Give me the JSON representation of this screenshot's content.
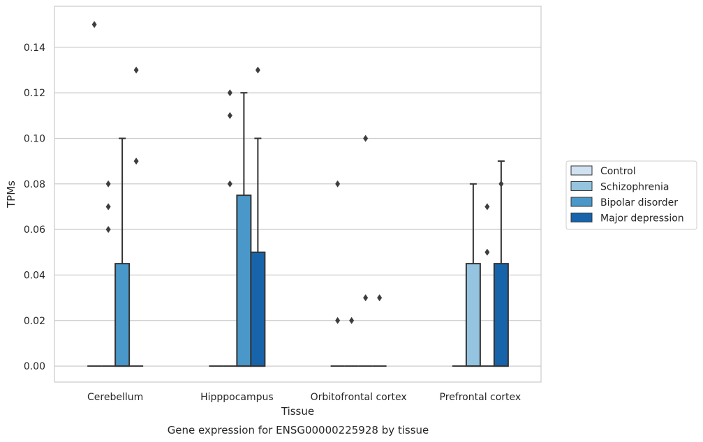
{
  "chart_data": {
    "type": "boxplot",
    "caption": "Gene expression for ENSG00000225928 by tissue",
    "xlabel": "Tissue",
    "ylabel": "TPMs",
    "ylim": [
      -0.007,
      0.158
    ],
    "yticks": [
      0.0,
      0.02,
      0.04,
      0.06,
      0.08,
      0.1,
      0.12,
      0.14
    ],
    "ytick_labels": [
      "0.00",
      "0.02",
      "0.04",
      "0.06",
      "0.08",
      "0.10",
      "0.12",
      "0.14"
    ],
    "grid": "y",
    "legend_position": "right",
    "categories": [
      "Cerebellum",
      "Hipppocampus",
      "Orbitofrontal cortex",
      "Prefrontal cortex"
    ],
    "series": [
      {
        "name": "Control",
        "color": "#d0e1f2",
        "boxes": [
          {
            "q1": 0,
            "median": 0,
            "q3": 0,
            "whisker_low": 0,
            "whisker_high": 0,
            "outliers": [
              0.15
            ]
          },
          {
            "q1": 0,
            "median": 0,
            "q3": 0,
            "whisker_low": 0,
            "whisker_high": 0,
            "outliers": []
          },
          {
            "q1": 0,
            "median": 0,
            "q3": 0,
            "whisker_low": 0,
            "whisker_high": 0,
            "outliers": [
              0.02,
              0.08
            ]
          },
          {
            "q1": 0,
            "median": 0,
            "q3": 0,
            "whisker_low": 0,
            "whisker_high": 0,
            "outliers": []
          }
        ]
      },
      {
        "name": "Schizophrenia",
        "color": "#94c4df",
        "boxes": [
          {
            "q1": 0,
            "median": 0,
            "q3": 0,
            "whisker_low": 0,
            "whisker_high": 0,
            "outliers": [
              0.06,
              0.07,
              0.08
            ]
          },
          {
            "q1": 0,
            "median": 0,
            "q3": 0,
            "whisker_low": 0,
            "whisker_high": 0,
            "outliers": [
              0.08,
              0.11,
              0.12
            ]
          },
          {
            "q1": 0,
            "median": 0,
            "q3": 0,
            "whisker_low": 0,
            "whisker_high": 0,
            "outliers": [
              0.02
            ]
          },
          {
            "q1": 0,
            "median": 0,
            "q3": 0.045,
            "whisker_low": 0,
            "whisker_high": 0.08,
            "outliers": []
          }
        ]
      },
      {
        "name": "Bipolar disorder",
        "color": "#4a98c9",
        "boxes": [
          {
            "q1": 0,
            "median": 0,
            "q3": 0.045,
            "whisker_low": 0,
            "whisker_high": 0.1,
            "outliers": []
          },
          {
            "q1": 0,
            "median": 0,
            "q3": 0.075,
            "whisker_low": 0,
            "whisker_high": 0.12,
            "outliers": []
          },
          {
            "q1": 0,
            "median": 0,
            "q3": 0,
            "whisker_low": 0,
            "whisker_high": 0,
            "outliers": [
              0.03,
              0.1
            ]
          },
          {
            "q1": 0,
            "median": 0,
            "q3": 0,
            "whisker_low": 0,
            "whisker_high": 0,
            "outliers": [
              0.05,
              0.07
            ]
          }
        ]
      },
      {
        "name": "Major depression",
        "color": "#1764ab",
        "boxes": [
          {
            "q1": 0,
            "median": 0,
            "q3": 0,
            "whisker_low": 0,
            "whisker_high": 0,
            "outliers": [
              0.09,
              0.13
            ]
          },
          {
            "q1": 0,
            "median": 0,
            "q3": 0.05,
            "whisker_low": 0,
            "whisker_high": 0.1,
            "outliers": [
              0.13
            ]
          },
          {
            "q1": 0,
            "median": 0,
            "q3": 0,
            "whisker_low": 0,
            "whisker_high": 0,
            "outliers": [
              0.03
            ]
          },
          {
            "q1": 0,
            "median": 0,
            "q3": 0.045,
            "whisker_low": 0,
            "whisker_high": 0.09,
            "outliers": [
              0.08
            ]
          }
        ]
      }
    ]
  }
}
